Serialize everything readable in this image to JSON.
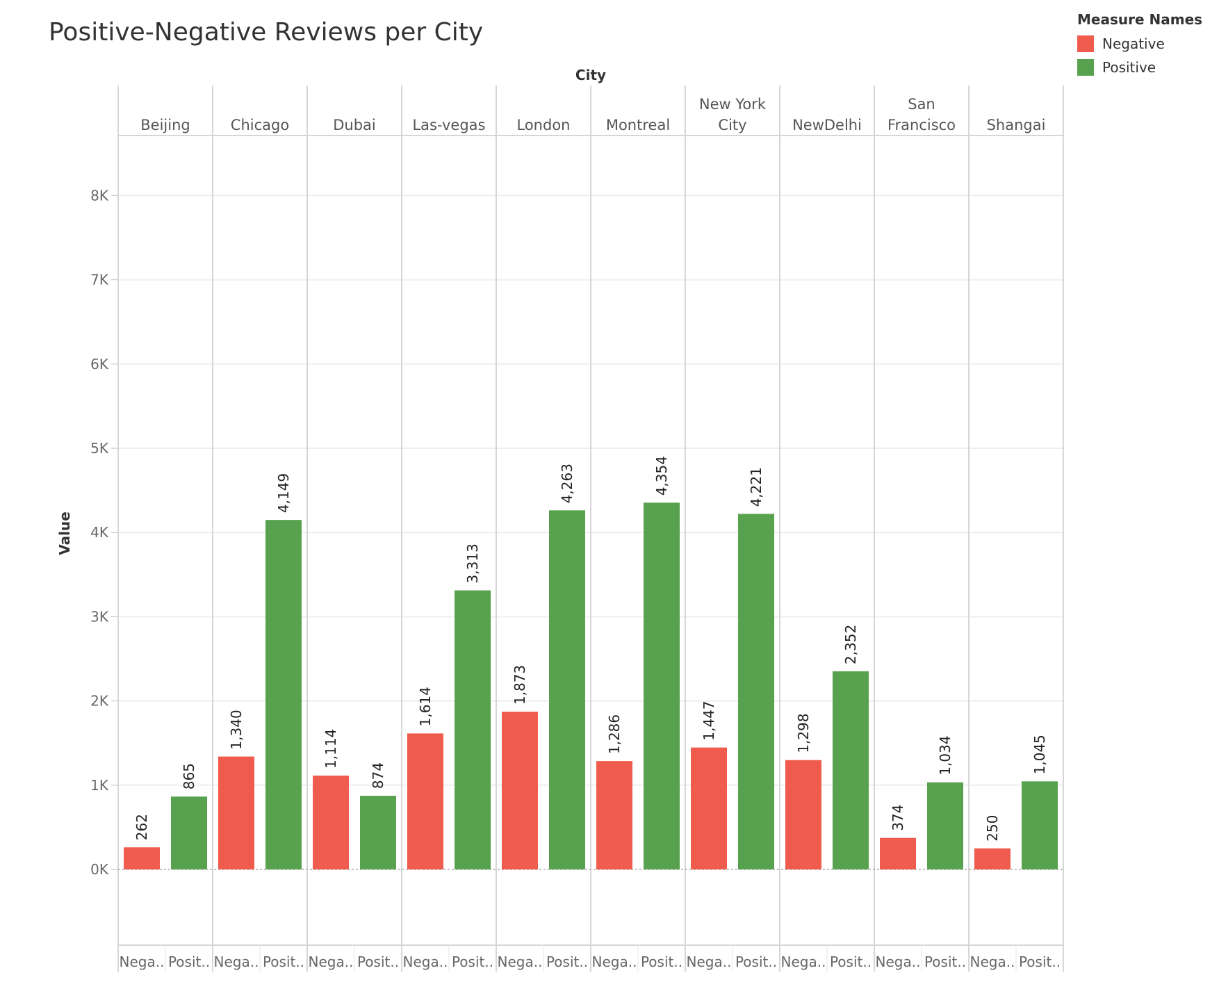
{
  "chart_data": {
    "type": "bar",
    "title": "Positive-Negative Reviews per City",
    "column_header": "City",
    "ylabel": "Value",
    "ylim": [
      -1000,
      9000
    ],
    "y_ticks": [
      0,
      1000,
      2000,
      3000,
      4000,
      5000,
      6000,
      7000,
      8000
    ],
    "y_tick_labels": [
      "0K",
      "1K",
      "2K",
      "3K",
      "4K",
      "5K",
      "6K",
      "7K",
      "8K"
    ],
    "grid": true,
    "legend": {
      "title": "Measure Names",
      "position": "top-right",
      "items": [
        {
          "name": "Negative",
          "color": "#EF5B4C"
        },
        {
          "name": "Positive",
          "color": "#58A14E"
        }
      ]
    },
    "measure_labels": [
      "Nega..",
      "Posit.."
    ],
    "categories": [
      {
        "city": [
          "Beijing"
        ],
        "negative": 262,
        "positive": 865,
        "negative_label": "262",
        "positive_label": "865"
      },
      {
        "city": [
          "Chicago"
        ],
        "negative": 1340,
        "positive": 4149,
        "negative_label": "1,340",
        "positive_label": "4,149"
      },
      {
        "city": [
          "Dubai"
        ],
        "negative": 1114,
        "positive": 874,
        "negative_label": "1,114",
        "positive_label": "874"
      },
      {
        "city": [
          "Las-vegas"
        ],
        "negative": 1614,
        "positive": 3313,
        "negative_label": "1,614",
        "positive_label": "3,313"
      },
      {
        "city": [
          "London"
        ],
        "negative": 1873,
        "positive": 4263,
        "negative_label": "1,873",
        "positive_label": "4,263"
      },
      {
        "city": [
          "Montreal"
        ],
        "negative": 1286,
        "positive": 4354,
        "negative_label": "1,286",
        "positive_label": "4,354"
      },
      {
        "city": [
          "New York",
          "City"
        ],
        "negative": 1447,
        "positive": 4221,
        "negative_label": "1,447",
        "positive_label": "4,221"
      },
      {
        "city": [
          "NewDelhi"
        ],
        "negative": 1298,
        "positive": 2352,
        "negative_label": "1,298",
        "positive_label": "2,352"
      },
      {
        "city": [
          "San",
          "Francisco"
        ],
        "negative": 374,
        "positive": 1034,
        "negative_label": "374",
        "positive_label": "1,034"
      },
      {
        "city": [
          "Shangai"
        ],
        "negative": 250,
        "positive": 1045,
        "negative_label": "250",
        "positive_label": "1,045"
      }
    ]
  }
}
